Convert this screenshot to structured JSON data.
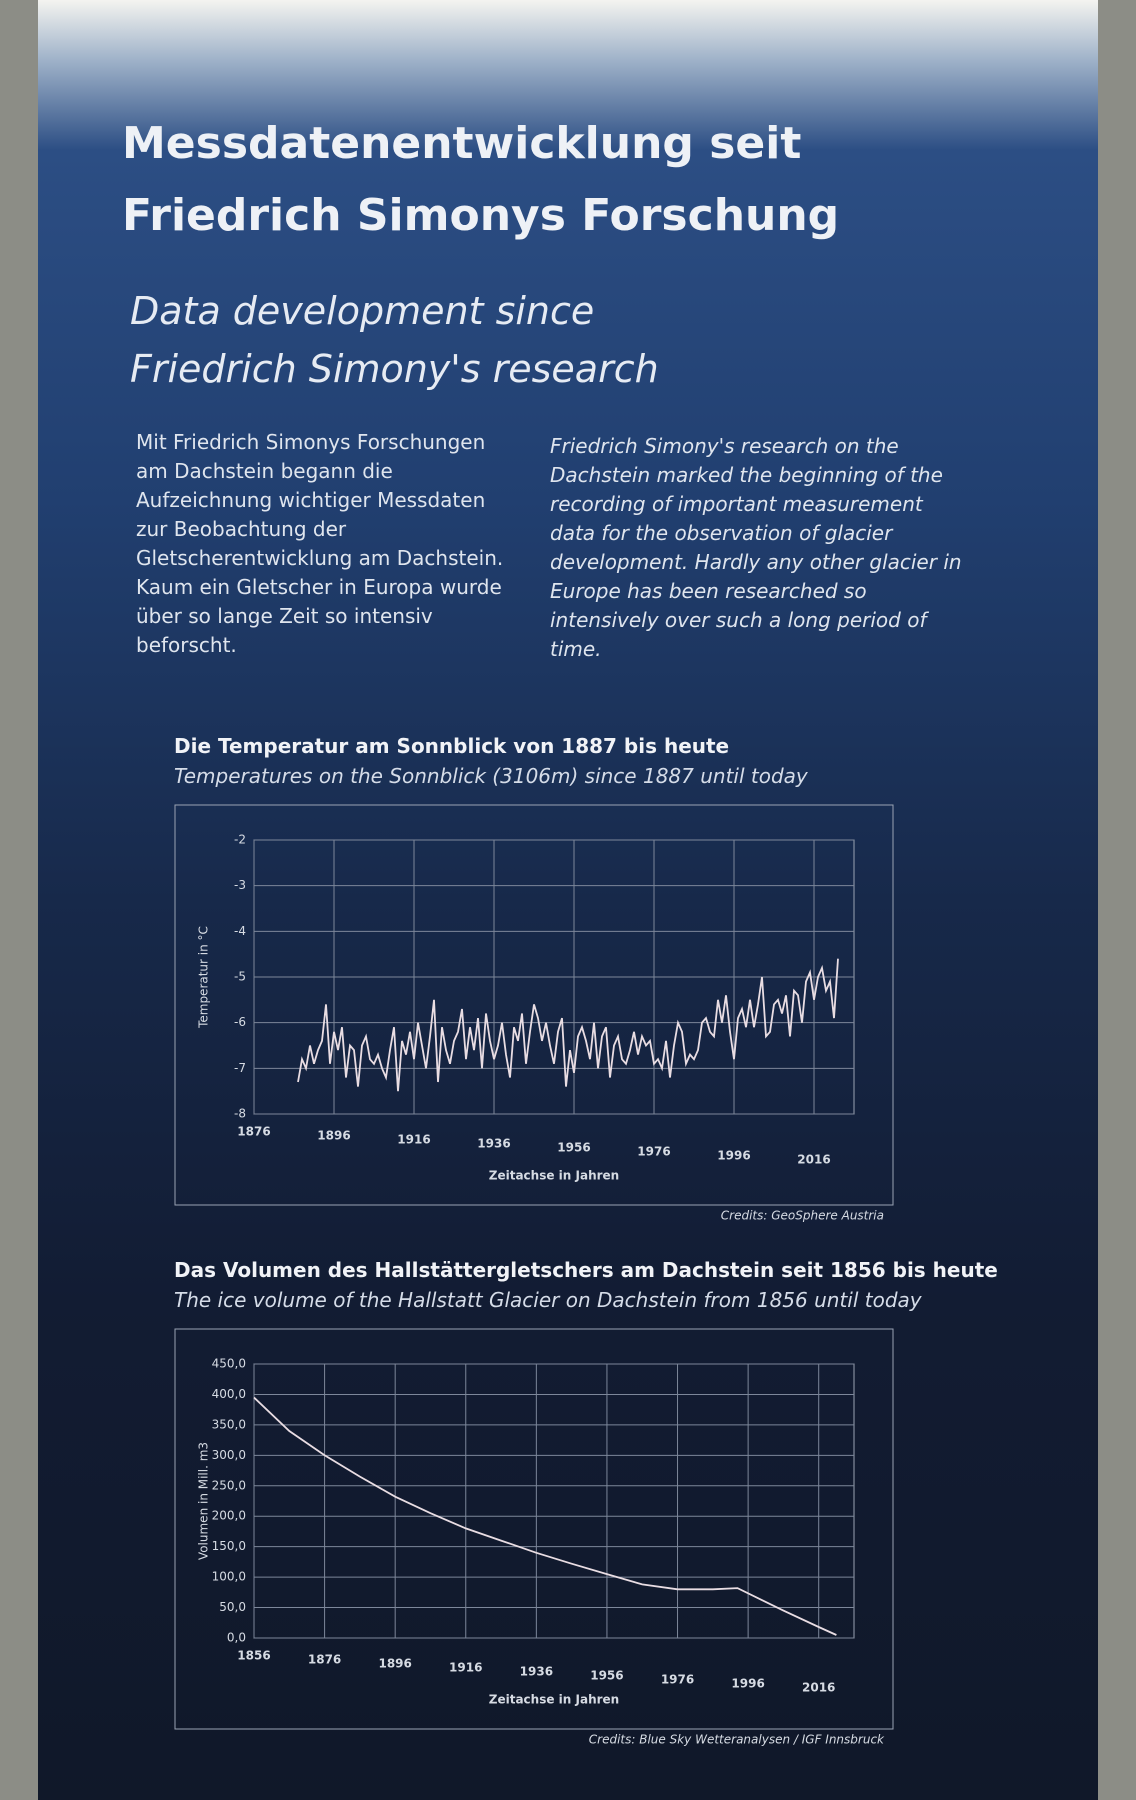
{
  "header": {
    "title_lines": [
      "Messdatenentwicklung seit",
      "Friedrich Simonys Forschung"
    ],
    "subtitle_lines": [
      "Data development since",
      "Friedrich Simony's research"
    ]
  },
  "text_de": "Mit Friedrich Simonys Forschungen am Dachstein begann die Aufzeichnung wichtiger Messdaten zur Beobachtung der Gletscherentwicklung am Dachstein. Kaum ein Gletscher in Europa wurde über so lange Zeit so intensiv beforscht.",
  "text_en": "Friedrich Simony's research on the Dachstein marked the beginning of the recording of important measurement data for the observation of glacier development. Hardly any other glacier in Europe has been researched so intensively over such a long period of time.",
  "chart_data": [
    {
      "type": "line",
      "title": "Die Temperatur am Sonnblick von 1887 bis heute",
      "subtitle": "Temperatures on the Sonnblick (3106m) since 1887 until today",
      "x_label": "Zeitachse in Jahren",
      "y_label": "Temperatur in °C",
      "credits": "Credits: GeoSphere Austria",
      "color": "#e9dde3",
      "grid": true,
      "xlim": [
        1876,
        2026
      ],
      "xticks": [
        1876,
        1896,
        1916,
        1936,
        1956,
        1976,
        1996,
        2016
      ],
      "ylim": [
        -8,
        -2
      ],
      "yticks": [
        -2,
        -3,
        -4,
        -5,
        -6,
        -7,
        -8
      ],
      "x": [
        1887,
        1888,
        1889,
        1890,
        1891,
        1892,
        1893,
        1894,
        1895,
        1896,
        1897,
        1898,
        1899,
        1900,
        1901,
        1902,
        1903,
        1904,
        1905,
        1906,
        1907,
        1908,
        1909,
        1910,
        1911,
        1912,
        1913,
        1914,
        1915,
        1916,
        1917,
        1918,
        1919,
        1920,
        1921,
        1922,
        1923,
        1924,
        1925,
        1926,
        1927,
        1928,
        1929,
        1930,
        1931,
        1932,
        1933,
        1934,
        1935,
        1936,
        1937,
        1938,
        1939,
        1940,
        1941,
        1942,
        1943,
        1944,
        1945,
        1946,
        1947,
        1948,
        1949,
        1950,
        1951,
        1952,
        1953,
        1954,
        1955,
        1956,
        1957,
        1958,
        1959,
        1960,
        1961,
        1962,
        1963,
        1964,
        1965,
        1966,
        1967,
        1968,
        1969,
        1970,
        1971,
        1972,
        1973,
        1974,
        1975,
        1976,
        1977,
        1978,
        1979,
        1980,
        1981,
        1982,
        1983,
        1984,
        1985,
        1986,
        1987,
        1988,
        1989,
        1990,
        1991,
        1992,
        1993,
        1994,
        1995,
        1996,
        1997,
        1998,
        1999,
        2000,
        2001,
        2002,
        2003,
        2004,
        2005,
        2006,
        2007,
        2008,
        2009,
        2010,
        2011,
        2012,
        2013,
        2014,
        2015,
        2016,
        2017,
        2018,
        2019,
        2020,
        2021,
        2022
      ],
      "values": [
        -7.3,
        -6.8,
        -7.0,
        -6.5,
        -6.9,
        -6.6,
        -6.4,
        -5.6,
        -6.9,
        -6.2,
        -6.6,
        -6.1,
        -7.2,
        -6.5,
        -6.6,
        -7.4,
        -6.5,
        -6.3,
        -6.8,
        -6.9,
        -6.7,
        -7.0,
        -7.2,
        -6.6,
        -6.1,
        -7.5,
        -6.4,
        -6.7,
        -6.2,
        -6.8,
        -6.0,
        -6.5,
        -7.0,
        -6.3,
        -5.5,
        -7.3,
        -6.1,
        -6.6,
        -6.9,
        -6.4,
        -6.2,
        -5.7,
        -6.8,
        -6.1,
        -6.6,
        -5.9,
        -7.0,
        -5.8,
        -6.4,
        -6.8,
        -6.5,
        -6.0,
        -6.7,
        -7.2,
        -6.1,
        -6.4,
        -5.8,
        -6.9,
        -6.2,
        -5.6,
        -5.9,
        -6.4,
        -6.0,
        -6.5,
        -6.9,
        -6.2,
        -5.9,
        -7.4,
        -6.6,
        -7.1,
        -6.3,
        -6.1,
        -6.4,
        -6.8,
        -6.0,
        -7.0,
        -6.3,
        -6.1,
        -7.2,
        -6.5,
        -6.3,
        -6.8,
        -6.9,
        -6.6,
        -6.2,
        -6.7,
        -6.3,
        -6.5,
        -6.4,
        -6.9,
        -6.8,
        -7.0,
        -6.4,
        -7.2,
        -6.5,
        -6.0,
        -6.2,
        -6.9,
        -6.7,
        -6.8,
        -6.6,
        -6.0,
        -5.9,
        -6.2,
        -6.3,
        -5.5,
        -6.0,
        -5.4,
        -6.2,
        -6.8,
        -5.9,
        -5.7,
        -6.1,
        -5.5,
        -6.1,
        -5.6,
        -5.0,
        -6.3,
        -6.2,
        -5.6,
        -5.5,
        -5.8,
        -5.4,
        -6.3,
        -5.3,
        -5.4,
        -6.0,
        -5.1,
        -4.9,
        -5.5,
        -5.0,
        -4.8,
        -5.3,
        -5.1,
        -5.9,
        -4.6
      ]
    },
    {
      "type": "line",
      "title": "Das Volumen des Hallstättergletschers am Dachstein seit 1856 bis heute",
      "subtitle": "The ice volume of the Hallstatt Glacier on Dachstein from 1856 until today",
      "x_label": "Zeitachse in Jahren",
      "y_label": "Volumen in Mill. m3",
      "credits": "Credits: Blue Sky Wetteranalysen / IGF Innsbruck",
      "color": "#e9dde3",
      "grid": true,
      "xlim": [
        1856,
        2026
      ],
      "xticks": [
        1856,
        1876,
        1896,
        1916,
        1936,
        1956,
        1976,
        1996,
        2016
      ],
      "ylim": [
        0,
        450
      ],
      "yticks": [
        {
          "value": 450,
          "label": "450,0"
        },
        {
          "value": 400,
          "label": "400,0"
        },
        {
          "value": 350,
          "label": "350,0"
        },
        {
          "value": 300,
          "label": "300,0"
        },
        {
          "value": 250,
          "label": "250,0"
        },
        {
          "value": 200,
          "label": "200,0"
        },
        {
          "value": 150,
          "label": "150,0"
        },
        {
          "value": 100,
          "label": "100,0"
        },
        {
          "value": 50,
          "label": "50,0"
        },
        {
          "value": 0,
          "label": "0,0"
        }
      ],
      "x": [
        1856,
        1866,
        1876,
        1886,
        1896,
        1906,
        1916,
        1926,
        1936,
        1946,
        1956,
        1966,
        1976,
        1986,
        1993,
        2006,
        2016,
        2021
      ],
      "values": [
        395,
        340,
        300,
        265,
        232,
        205,
        180,
        160,
        140,
        122,
        105,
        88,
        80,
        80,
        82,
        45,
        18,
        5
      ]
    }
  ]
}
